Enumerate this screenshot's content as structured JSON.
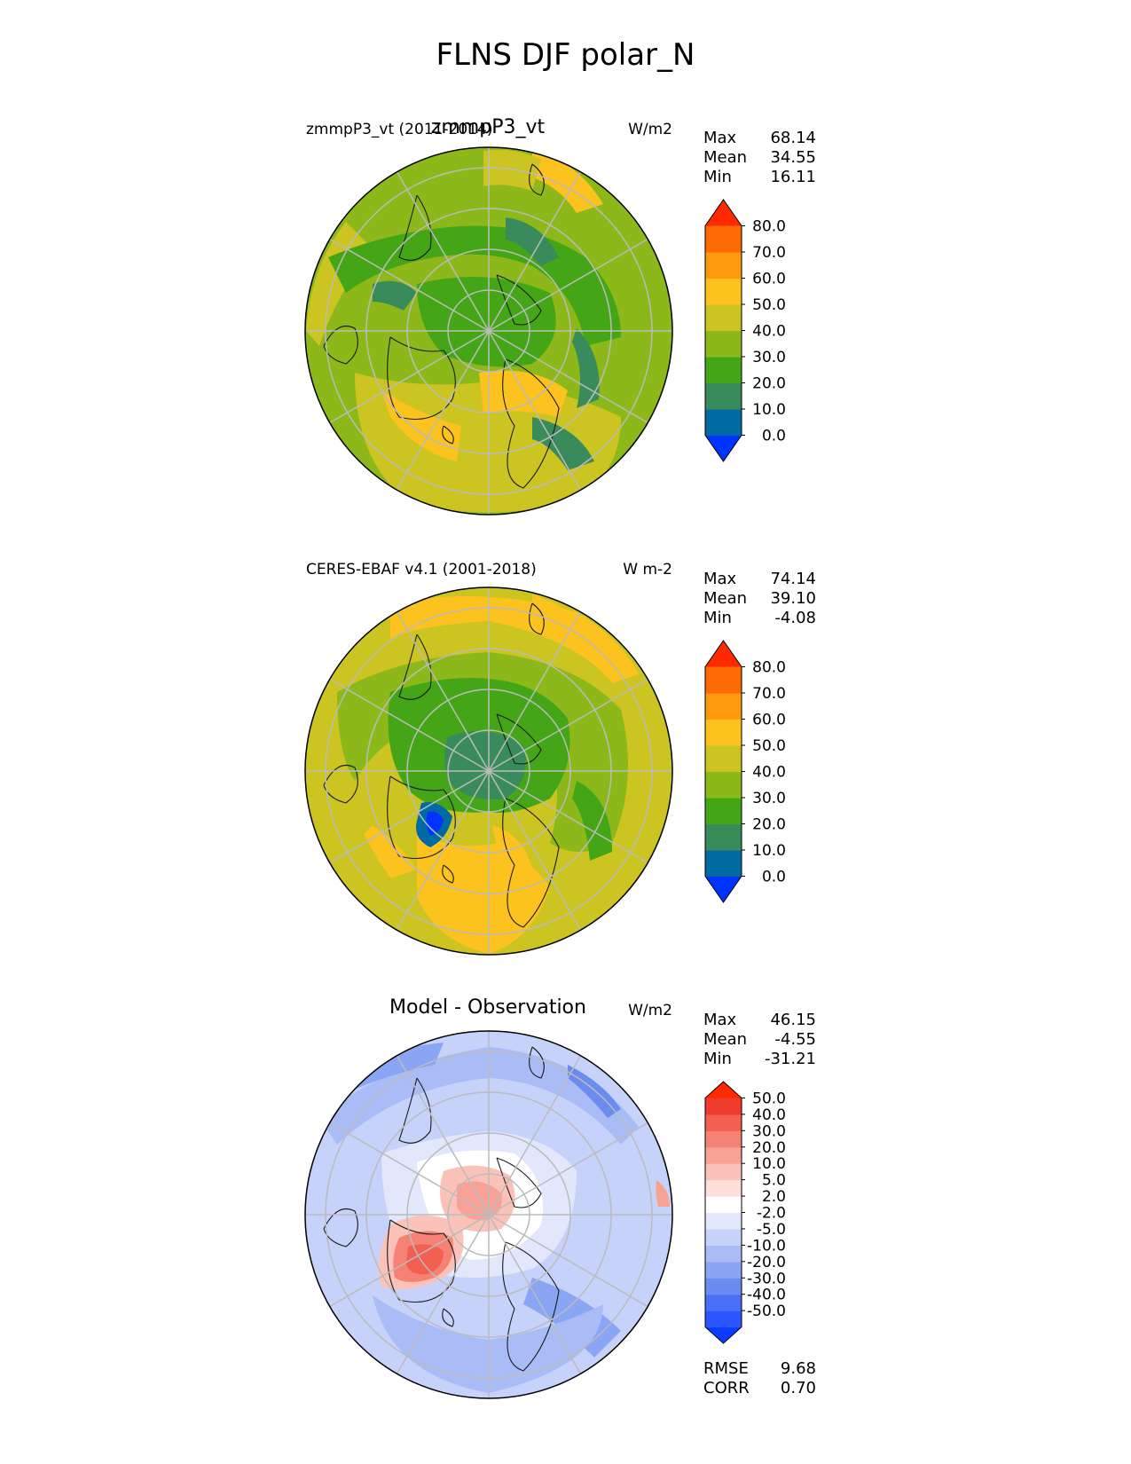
{
  "figure_title": "FLNS DJF polar_N",
  "colors": {
    "land_outline": "#1a1a1a",
    "grid": "#bbbbbb",
    "abs_cmap": [
      "#0033ff",
      "#006aa3",
      "#3a8b5c",
      "#44a617",
      "#8db81a",
      "#cbc421",
      "#fcc21e",
      "#fd9a0e",
      "#fe6b04",
      "#ff2a00"
    ],
    "diff_cmap": [
      "#0a3cff",
      "#2a55ff",
      "#4a6ef5",
      "#6a8cf0",
      "#8aa5f3",
      "#a9bcf6",
      "#c7d2fa",
      "#e2e7fc",
      "#ffffff",
      "#fde0dc",
      "#fbc2ba",
      "#f8a296",
      "#f58274",
      "#f26052",
      "#f03c2c",
      "#ff2a00"
    ]
  },
  "panels": [
    {
      "id": "test",
      "left_label": "zmmpP3_vt (2011-2014)",
      "center_title": "zmmpP3_vt",
      "units": "W/m2",
      "stats": [
        {
          "name": "Max",
          "value": "68.14"
        },
        {
          "name": "Mean",
          "value": "34.55"
        },
        {
          "name": "Min",
          "value": "16.11"
        }
      ],
      "colorbar_ticks": [
        "80.0",
        "70.0",
        "60.0",
        "50.0",
        "40.0",
        "30.0",
        "20.0",
        "10.0",
        "0.0"
      ]
    },
    {
      "id": "ref",
      "left_label": "CERES-EBAF v4.1 (2001-2018)",
      "center_title": "",
      "units": "W m-2",
      "stats": [
        {
          "name": "Max",
          "value": "74.14"
        },
        {
          "name": "Mean",
          "value": "39.10"
        },
        {
          "name": "Min",
          "value": "-4.08"
        }
      ],
      "colorbar_ticks": [
        "80.0",
        "70.0",
        "60.0",
        "50.0",
        "40.0",
        "30.0",
        "20.0",
        "10.0",
        "0.0"
      ]
    },
    {
      "id": "diff",
      "left_label": "",
      "center_title": "Model - Observation",
      "units": "W/m2",
      "stats": [
        {
          "name": "Max",
          "value": "46.15"
        },
        {
          "name": "Mean",
          "value": "-4.55"
        },
        {
          "name": "Min",
          "value": "-31.21"
        }
      ],
      "colorbar_ticks": [
        "50.0",
        "40.0",
        "30.0",
        "20.0",
        "10.0",
        "5.0",
        "2.0",
        "-2.0",
        "-5.0",
        "-10.0",
        "-20.0",
        "-30.0",
        "-40.0",
        "-50.0"
      ],
      "extra_stats": [
        {
          "name": "RMSE",
          "value": "9.68"
        },
        {
          "name": "CORR",
          "value": "0.70"
        }
      ]
    }
  ],
  "chart_data": [
    {
      "type": "heatmap",
      "title": "zmmpP3_vt",
      "projection": "north polar stereographic",
      "units": "W/m2",
      "levels": [
        0,
        10,
        20,
        30,
        40,
        50,
        60,
        70,
        80
      ],
      "max": 68.14,
      "mean": 34.55,
      "min": 16.11
    },
    {
      "type": "heatmap",
      "title": "CERES-EBAF v4.1 (2001-2018)",
      "projection": "north polar stereographic",
      "units": "W m-2",
      "levels": [
        0,
        10,
        20,
        30,
        40,
        50,
        60,
        70,
        80
      ],
      "max": 74.14,
      "mean": 39.1,
      "min": -4.08
    },
    {
      "type": "heatmap",
      "title": "Model - Observation",
      "projection": "north polar stereographic",
      "units": "W/m2",
      "levels": [
        -50,
        -40,
        -30,
        -20,
        -10,
        -5,
        -2,
        2,
        5,
        10,
        20,
        30,
        40,
        50
      ],
      "max": 46.15,
      "mean": -4.55,
      "min": -31.21,
      "rmse": 9.68,
      "corr": 0.7
    }
  ]
}
